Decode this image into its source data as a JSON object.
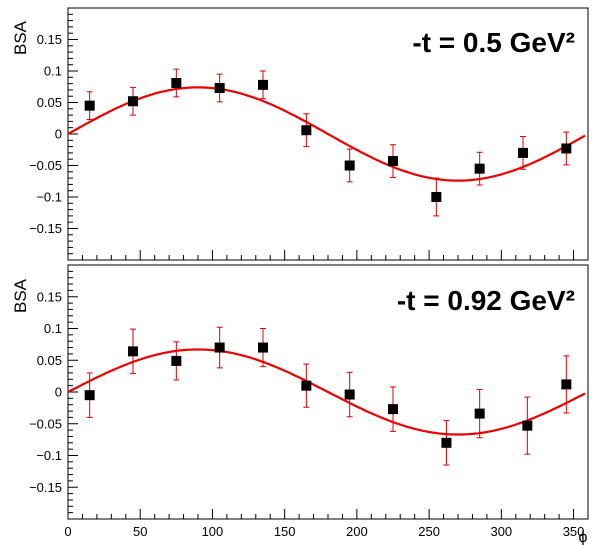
{
  "chart_data": [
    {
      "type": "scatter",
      "title": "-t = 0.5 GeV²",
      "ylabel": "BSA",
      "xlabel": "",
      "xlim": [
        0,
        360
      ],
      "ylim": [
        -0.2,
        0.2
      ],
      "yticks": [
        -0.15,
        -0.1,
        -0.05,
        0,
        0.05,
        0.1,
        0.15
      ],
      "ytick_labels": [
        "−0.15",
        "−0.1",
        "−0.05",
        "0",
        "0.05",
        "0.1",
        "0.15"
      ],
      "grid": false,
      "points": [
        {
          "x": 15,
          "y": 0.045,
          "err": 0.022
        },
        {
          "x": 45,
          "y": 0.052,
          "err": 0.022
        },
        {
          "x": 75,
          "y": 0.081,
          "err": 0.022
        },
        {
          "x": 105,
          "y": 0.073,
          "err": 0.022
        },
        {
          "x": 135,
          "y": 0.078,
          "err": 0.022
        },
        {
          "x": 165,
          "y": 0.006,
          "err": 0.026
        },
        {
          "x": 195,
          "y": -0.05,
          "err": 0.026
        },
        {
          "x": 225,
          "y": -0.043,
          "err": 0.026
        },
        {
          "x": 255,
          "y": -0.1,
          "err": 0.03
        },
        {
          "x": 285,
          "y": -0.055,
          "err": 0.026
        },
        {
          "x": 315,
          "y": -0.03,
          "err": 0.026
        },
        {
          "x": 345,
          "y": -0.023,
          "err": 0.026
        }
      ],
      "fit": {
        "amplitude": 0.074,
        "xmin": 0,
        "xmax": 358
      }
    },
    {
      "type": "scatter",
      "title": "-t = 0.92 GeV²",
      "ylabel": "BSA",
      "xlabel": "ϕ",
      "xlim": [
        0,
        360
      ],
      "ylim": [
        -0.2,
        0.2
      ],
      "yticks": [
        -0.15,
        -0.1,
        -0.05,
        0,
        0.05,
        0.1,
        0.15
      ],
      "ytick_labels": [
        "−0.15",
        "−0.1",
        "−0.05",
        "0",
        "0.05",
        "0.1",
        "0.15"
      ],
      "xticks": [
        0,
        50,
        100,
        150,
        200,
        250,
        300,
        350
      ],
      "grid": false,
      "points": [
        {
          "x": 15,
          "y": -0.005,
          "err": 0.035
        },
        {
          "x": 45,
          "y": 0.064,
          "err": 0.035
        },
        {
          "x": 75,
          "y": 0.049,
          "err": 0.03
        },
        {
          "x": 105,
          "y": 0.07,
          "err": 0.032
        },
        {
          "x": 135,
          "y": 0.07,
          "err": 0.03
        },
        {
          "x": 165,
          "y": 0.01,
          "err": 0.034
        },
        {
          "x": 195,
          "y": -0.004,
          "err": 0.035
        },
        {
          "x": 225,
          "y": -0.027,
          "err": 0.035
        },
        {
          "x": 262,
          "y": -0.08,
          "err": 0.035
        },
        {
          "x": 285,
          "y": -0.034,
          "err": 0.038
        },
        {
          "x": 318,
          "y": -0.053,
          "err": 0.045
        },
        {
          "x": 345,
          "y": 0.012,
          "err": 0.045
        }
      ],
      "fit": {
        "amplitude": 0.067,
        "xmin": 0,
        "xmax": 358
      }
    }
  ]
}
